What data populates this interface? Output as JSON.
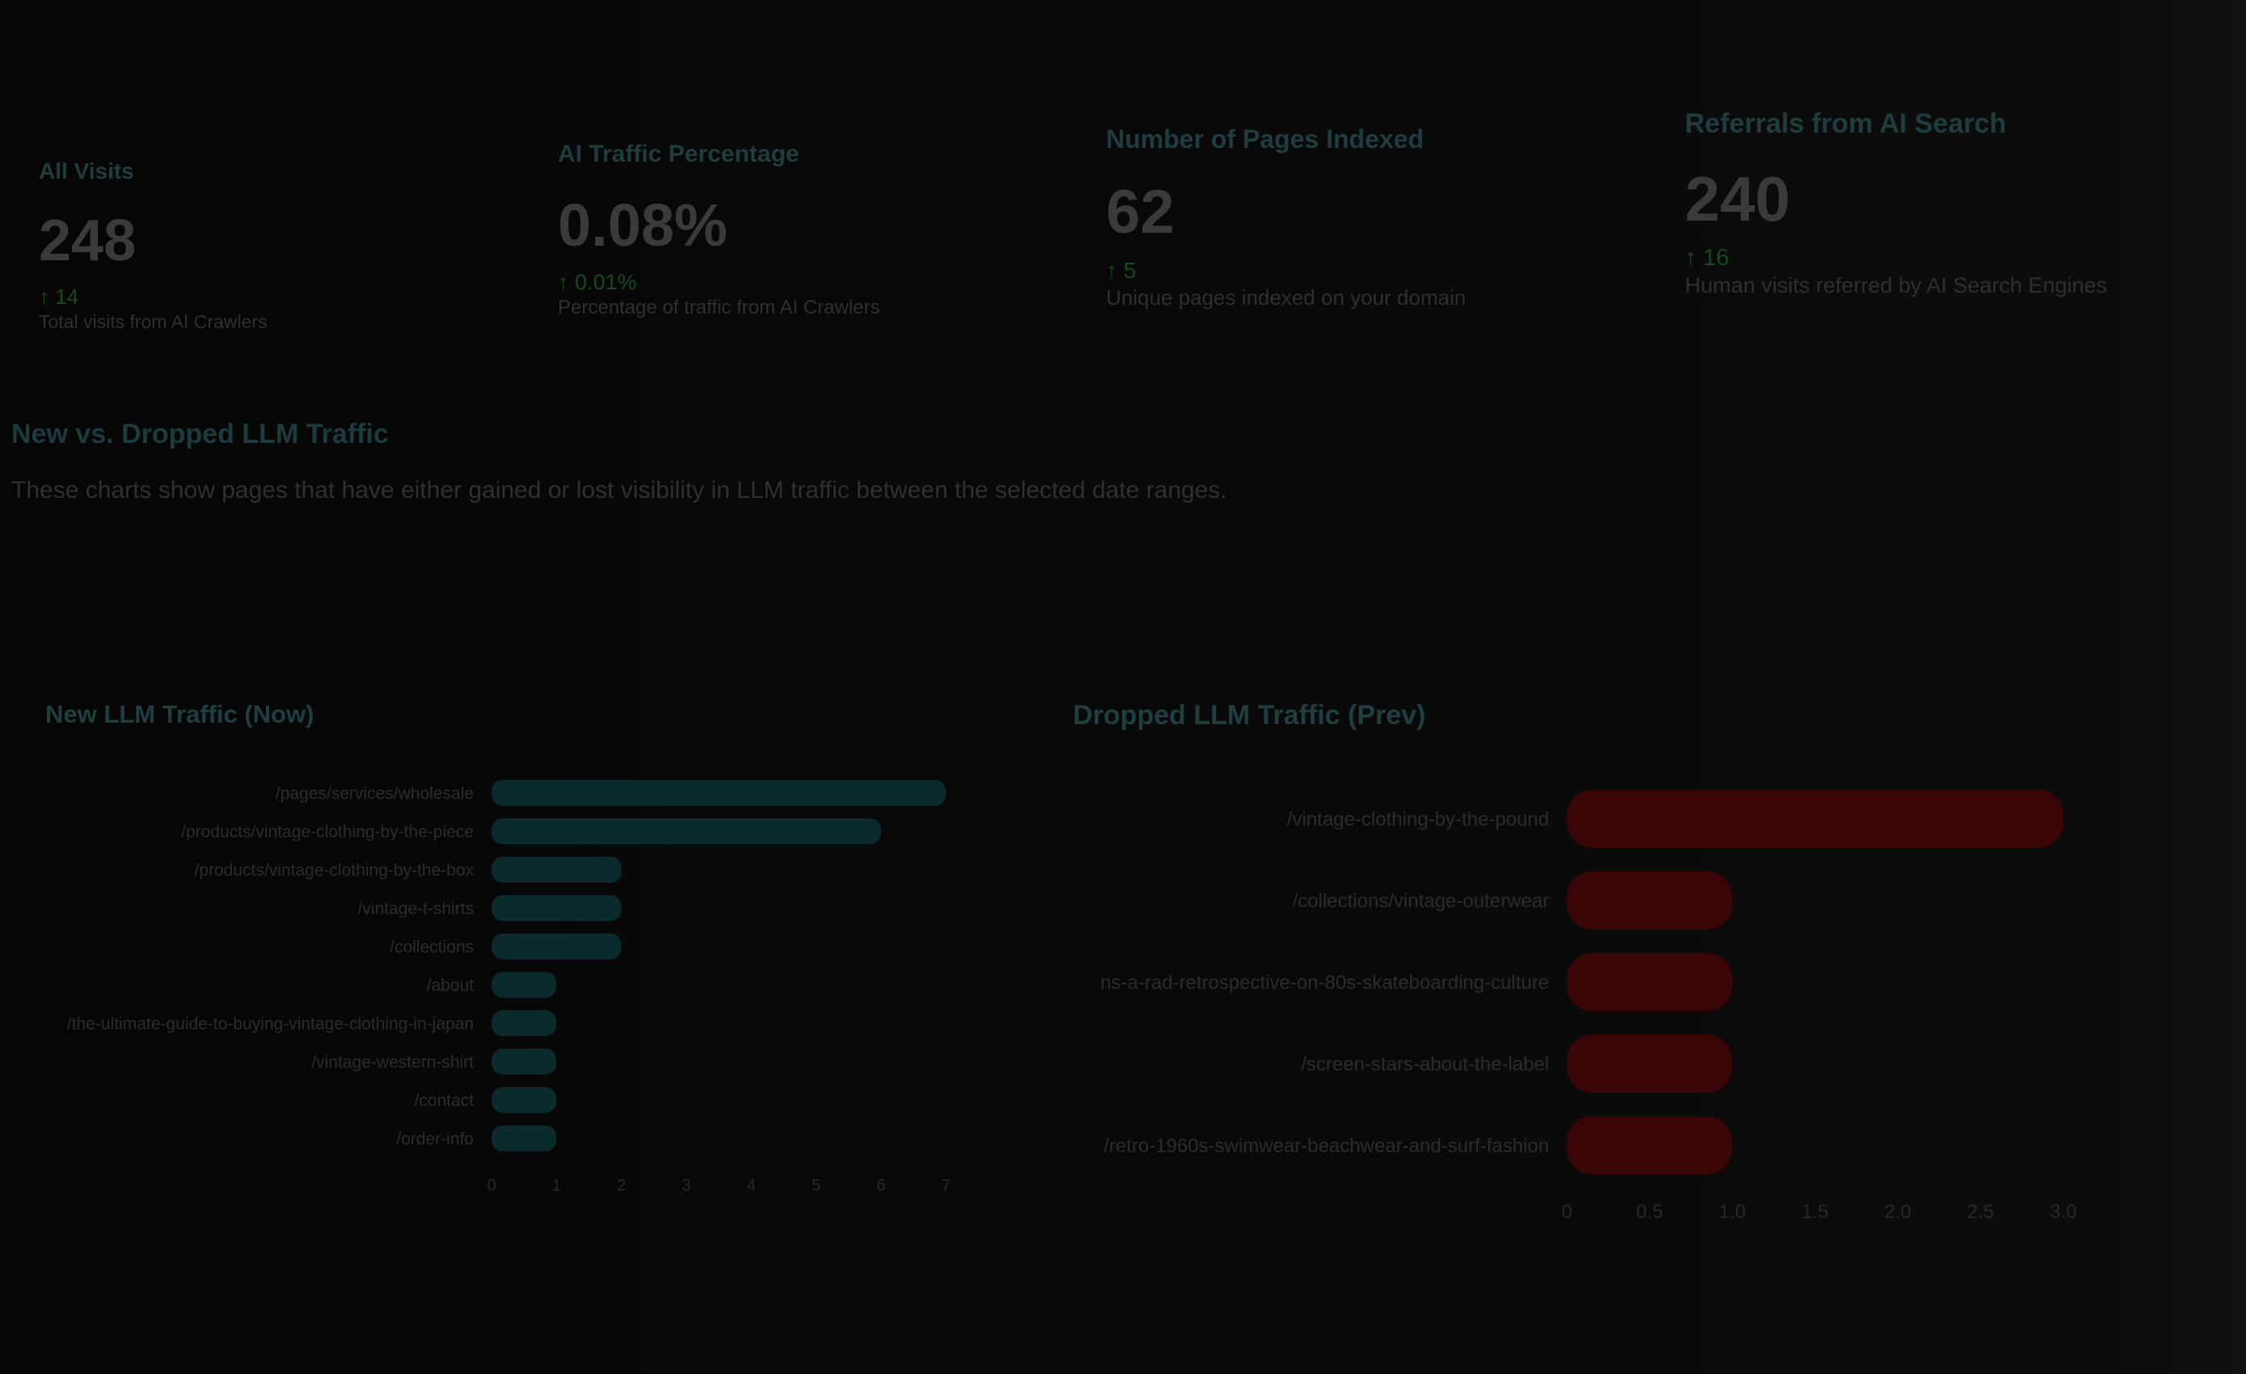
{
  "stats": [
    {
      "title": "All Visits",
      "value": "248",
      "delta": "↑ 14",
      "desc": "Total visits from AI Crawlers"
    },
    {
      "title": "AI Traffic Percentage",
      "value": "0.08%",
      "delta": "↑ 0.01%",
      "desc": "Percentage of traffic from AI Crawlers"
    },
    {
      "title": "Number of Pages Indexed",
      "value": "62",
      "delta": "↑ 5",
      "desc": "Unique pages indexed on your domain"
    },
    {
      "title": "Referrals from AI Search",
      "value": "240",
      "delta": "↑ 16",
      "desc": "Human visits referred by AI Search Engines"
    }
  ],
  "section": {
    "title": "New vs. Dropped LLM Traffic",
    "desc": "These charts show pages that have either gained or lost visibility in LLM traffic between the selected date ranges."
  },
  "colors": {
    "new_bar": "#0a2a2c",
    "dropped_bar": "#3a0506",
    "accent_title": "#1f3e40",
    "delta_up": "#154a1c"
  },
  "chart_data": [
    {
      "type": "bar",
      "orientation": "horizontal",
      "title": "New LLM Traffic (Now)",
      "categories": [
        "/pages/services/wholesale",
        "/products/vintage-clothing-by-the-piece",
        "/products/vintage-clothing-by-the-box",
        "/vintage-t-shirts",
        "/collections",
        "/about",
        "/the-ultimate-guide-to-buying-vintage-clothing-in-japan",
        "/vintage-western-shirt",
        "/contact",
        "/order-info"
      ],
      "values": [
        7,
        6,
        2,
        2,
        2,
        1,
        1,
        1,
        1,
        1
      ],
      "xlim": [
        0,
        7
      ],
      "xticks": [
        "0",
        "1",
        "2",
        "3",
        "4",
        "5",
        "6",
        "7"
      ],
      "grid": false
    },
    {
      "type": "bar",
      "orientation": "horizontal",
      "title": "Dropped LLM Traffic (Prev)",
      "categories": [
        "/vintage-clothing-by-the-pound",
        "/collections/vintage-outerwear",
        "ns-a-rad-retrospective-on-80s-skateboarding-culture",
        "/screen-stars-about-the-label",
        "/retro-1960s-swimwear-beachwear-and-surf-fashion"
      ],
      "values": [
        3,
        1,
        1,
        1,
        1
      ],
      "xlim": [
        0,
        3
      ],
      "xticks": [
        "0",
        "0.5",
        "1.0",
        "1.5",
        "2.0",
        "2.5",
        "3.0"
      ],
      "grid": false
    }
  ]
}
